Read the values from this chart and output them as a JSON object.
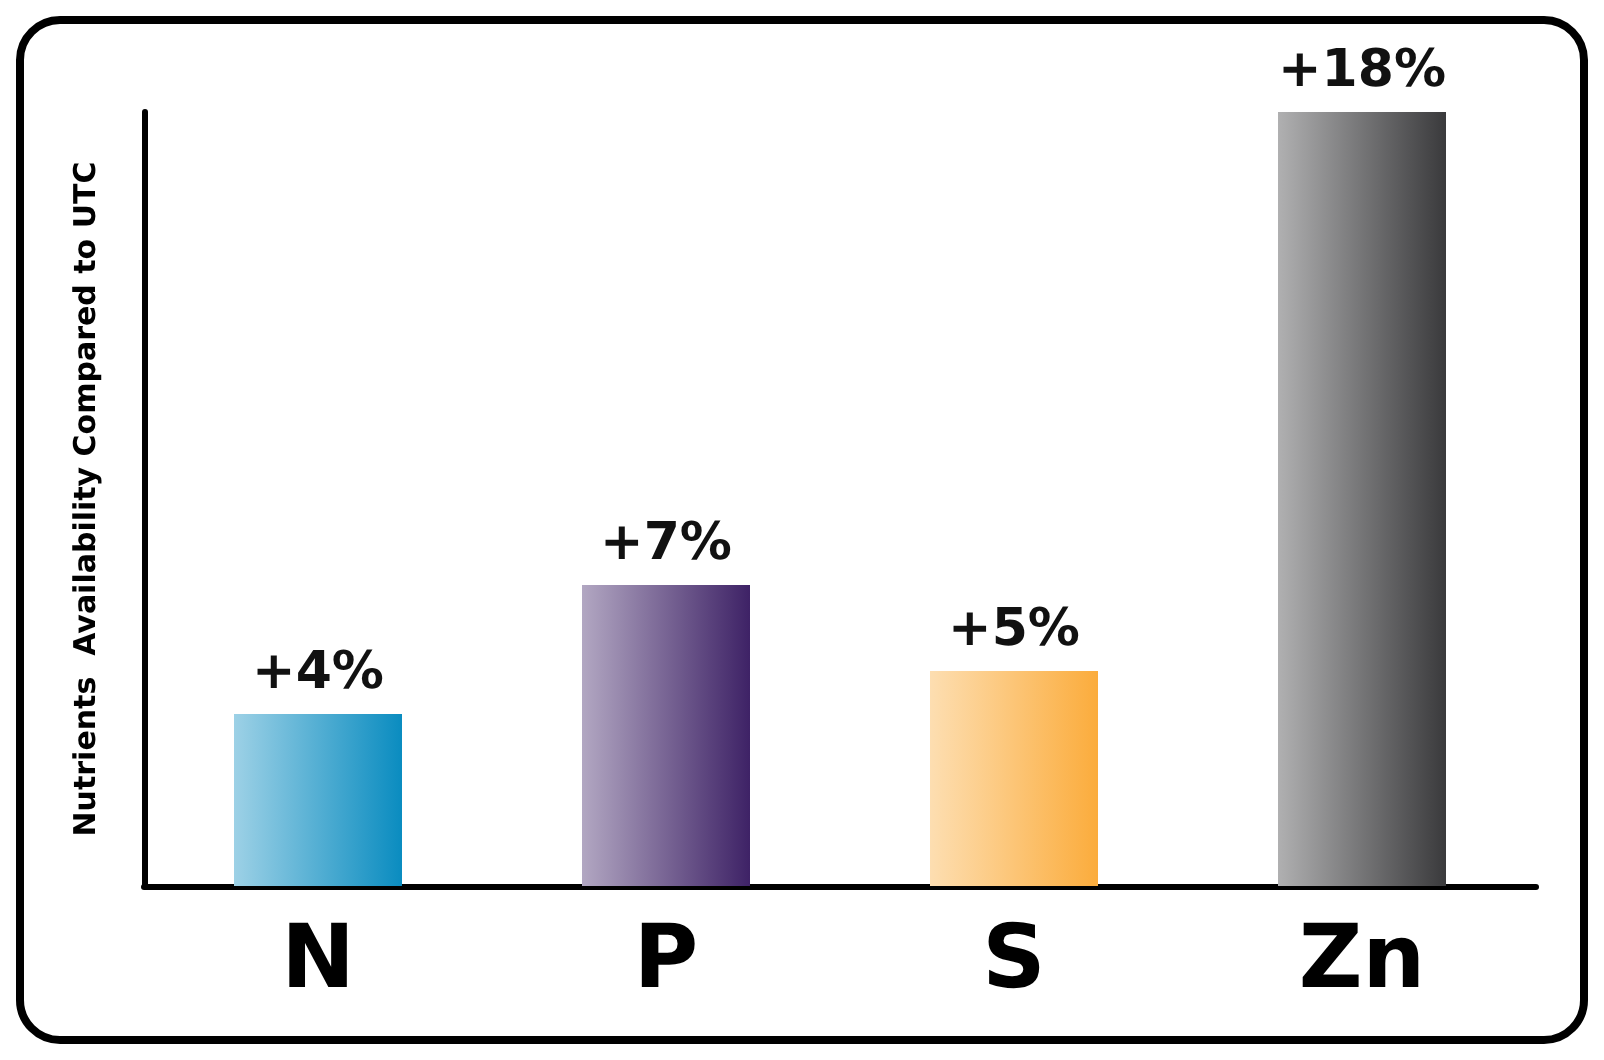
{
  "chart_data": {
    "type": "bar",
    "ylabel": "Nutrients  Availability Compared to UTC",
    "categories": [
      "N",
      "P",
      "S",
      "Zn"
    ],
    "values": [
      4,
      7,
      5,
      18
    ],
    "value_labels": [
      "+4%",
      "+7%",
      "+5%",
      "+18%"
    ],
    "colors": [
      "#0a8cc0",
      "#3e2266",
      "#fbac3c",
      "#3a3a3c"
    ]
  }
}
